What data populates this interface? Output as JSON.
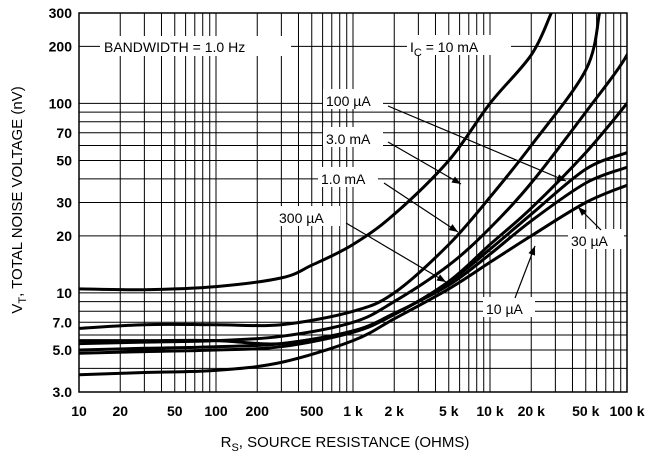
{
  "chart_data": {
    "type": "line",
    "title": "",
    "xlabel": "R_S, SOURCE RESISTANCE (OHMS)",
    "xlabel_main": "R",
    "xlabel_sub": "S",
    "xlabel_rest": ", SOURCE RESISTANCE (OHMS)",
    "ylabel_main": "V",
    "ylabel_sub": "T",
    "ylabel_rest": ", TOTAL NOISE VOLTAGE (nV)",
    "x_scale": "log",
    "y_scale": "log",
    "xlim": [
      10,
      100000
    ],
    "ylim": [
      3,
      300
    ],
    "grid": true,
    "x_ticks": [
      {
        "v": 10,
        "label": "10"
      },
      {
        "v": 20,
        "label": "20"
      },
      {
        "v": 50,
        "label": "50"
      },
      {
        "v": 100,
        "label": "100"
      },
      {
        "v": 200,
        "label": "200"
      },
      {
        "v": 500,
        "label": "500"
      },
      {
        "v": 1000,
        "label": "1 k"
      },
      {
        "v": 2000,
        "label": "2 k"
      },
      {
        "v": 5000,
        "label": "5 k"
      },
      {
        "v": 10000,
        "label": "10 k"
      },
      {
        "v": 20000,
        "label": "20 k"
      },
      {
        "v": 50000,
        "label": "50 k"
      },
      {
        "v": 100000,
        "label": "100 k"
      }
    ],
    "y_ticks": [
      {
        "v": 3,
        "label": "3.0"
      },
      {
        "v": 5,
        "label": "5.0"
      },
      {
        "v": 7,
        "label": "7.0"
      },
      {
        "v": 10,
        "label": "10"
      },
      {
        "v": 20,
        "label": "20"
      },
      {
        "v": 30,
        "label": "30"
      },
      {
        "v": 50,
        "label": "50"
      },
      {
        "v": 70,
        "label": "70"
      },
      {
        "v": 100,
        "label": "100"
      },
      {
        "v": 200,
        "label": "200"
      },
      {
        "v": 300,
        "label": "300"
      }
    ],
    "annotation_bandwidth": "BANDWIDTH = 1.0 Hz",
    "series": [
      {
        "name": "10 mA",
        "label_main": "I",
        "label_sub": "C",
        "label_rest": " = 10 mA",
        "points": [
          [
            10,
            10.5
          ],
          [
            30,
            10.4
          ],
          [
            100,
            10.8
          ],
          [
            300,
            12
          ],
          [
            500,
            14
          ],
          [
            1000,
            18
          ],
          [
            2000,
            26
          ],
          [
            5000,
            50
          ],
          [
            10000,
            100
          ],
          [
            20000,
            180
          ],
          [
            28000,
            300
          ]
        ]
      },
      {
        "name": "3.0 mA",
        "label": "3.0 mA",
        "points": [
          [
            10,
            6.5
          ],
          [
            30,
            6.8
          ],
          [
            100,
            6.8
          ],
          [
            300,
            6.8
          ],
          [
            1000,
            8
          ],
          [
            2000,
            10
          ],
          [
            5000,
            18
          ],
          [
            10000,
            32
          ],
          [
            20000,
            60
          ],
          [
            50000,
            150
          ],
          [
            63000,
            300
          ]
        ]
      },
      {
        "name": "1.0 mA",
        "label": "1.0 mA",
        "points": [
          [
            10,
            5.4
          ],
          [
            30,
            5.5
          ],
          [
            100,
            5.6
          ],
          [
            300,
            5.9
          ],
          [
            1000,
            7
          ],
          [
            2000,
            9
          ],
          [
            5000,
            14
          ],
          [
            10000,
            22
          ],
          [
            20000,
            38
          ],
          [
            50000,
            90
          ],
          [
            100000,
            180
          ],
          [
            130000,
            300
          ]
        ]
      },
      {
        "name": "300 µA",
        "label": "300 µA",
        "points": [
          [
            10,
            5.0
          ],
          [
            30,
            5.1
          ],
          [
            100,
            5.2
          ],
          [
            300,
            5.4
          ],
          [
            1000,
            6.3
          ],
          [
            2000,
            7.7
          ],
          [
            5000,
            11.5
          ],
          [
            10000,
            18
          ],
          [
            20000,
            28
          ],
          [
            50000,
            55
          ],
          [
            100000,
            100
          ]
        ]
      },
      {
        "name": "100 µA",
        "label": "100 µA",
        "points": [
          [
            10,
            4.8
          ],
          [
            30,
            4.9
          ],
          [
            100,
            5.0
          ],
          [
            300,
            5.2
          ],
          [
            1000,
            6.2
          ],
          [
            2000,
            7.7
          ],
          [
            5000,
            11.4
          ],
          [
            10000,
            17
          ],
          [
            20000,
            26
          ],
          [
            50000,
            45
          ],
          [
            100000,
            55
          ]
        ]
      },
      {
        "name": "30 µA",
        "label": "30 µA",
        "points": [
          [
            10,
            5.6
          ],
          [
            30,
            5.6
          ],
          [
            100,
            5.6
          ],
          [
            300,
            5.4
          ],
          [
            1000,
            6.3
          ],
          [
            2000,
            7.8
          ],
          [
            5000,
            11
          ],
          [
            10000,
            16
          ],
          [
            20000,
            24
          ],
          [
            50000,
            38
          ],
          [
            100000,
            46
          ]
        ]
      },
      {
        "name": "10 µA",
        "label": "10 µA",
        "points": [
          [
            10,
            3.7
          ],
          [
            30,
            3.8
          ],
          [
            100,
            3.9
          ],
          [
            300,
            4.3
          ],
          [
            1000,
            5.6
          ],
          [
            2000,
            7.3
          ],
          [
            5000,
            10.5
          ],
          [
            10000,
            14.5
          ],
          [
            20000,
            20
          ],
          [
            50000,
            30
          ],
          [
            100000,
            37
          ]
        ]
      }
    ]
  }
}
